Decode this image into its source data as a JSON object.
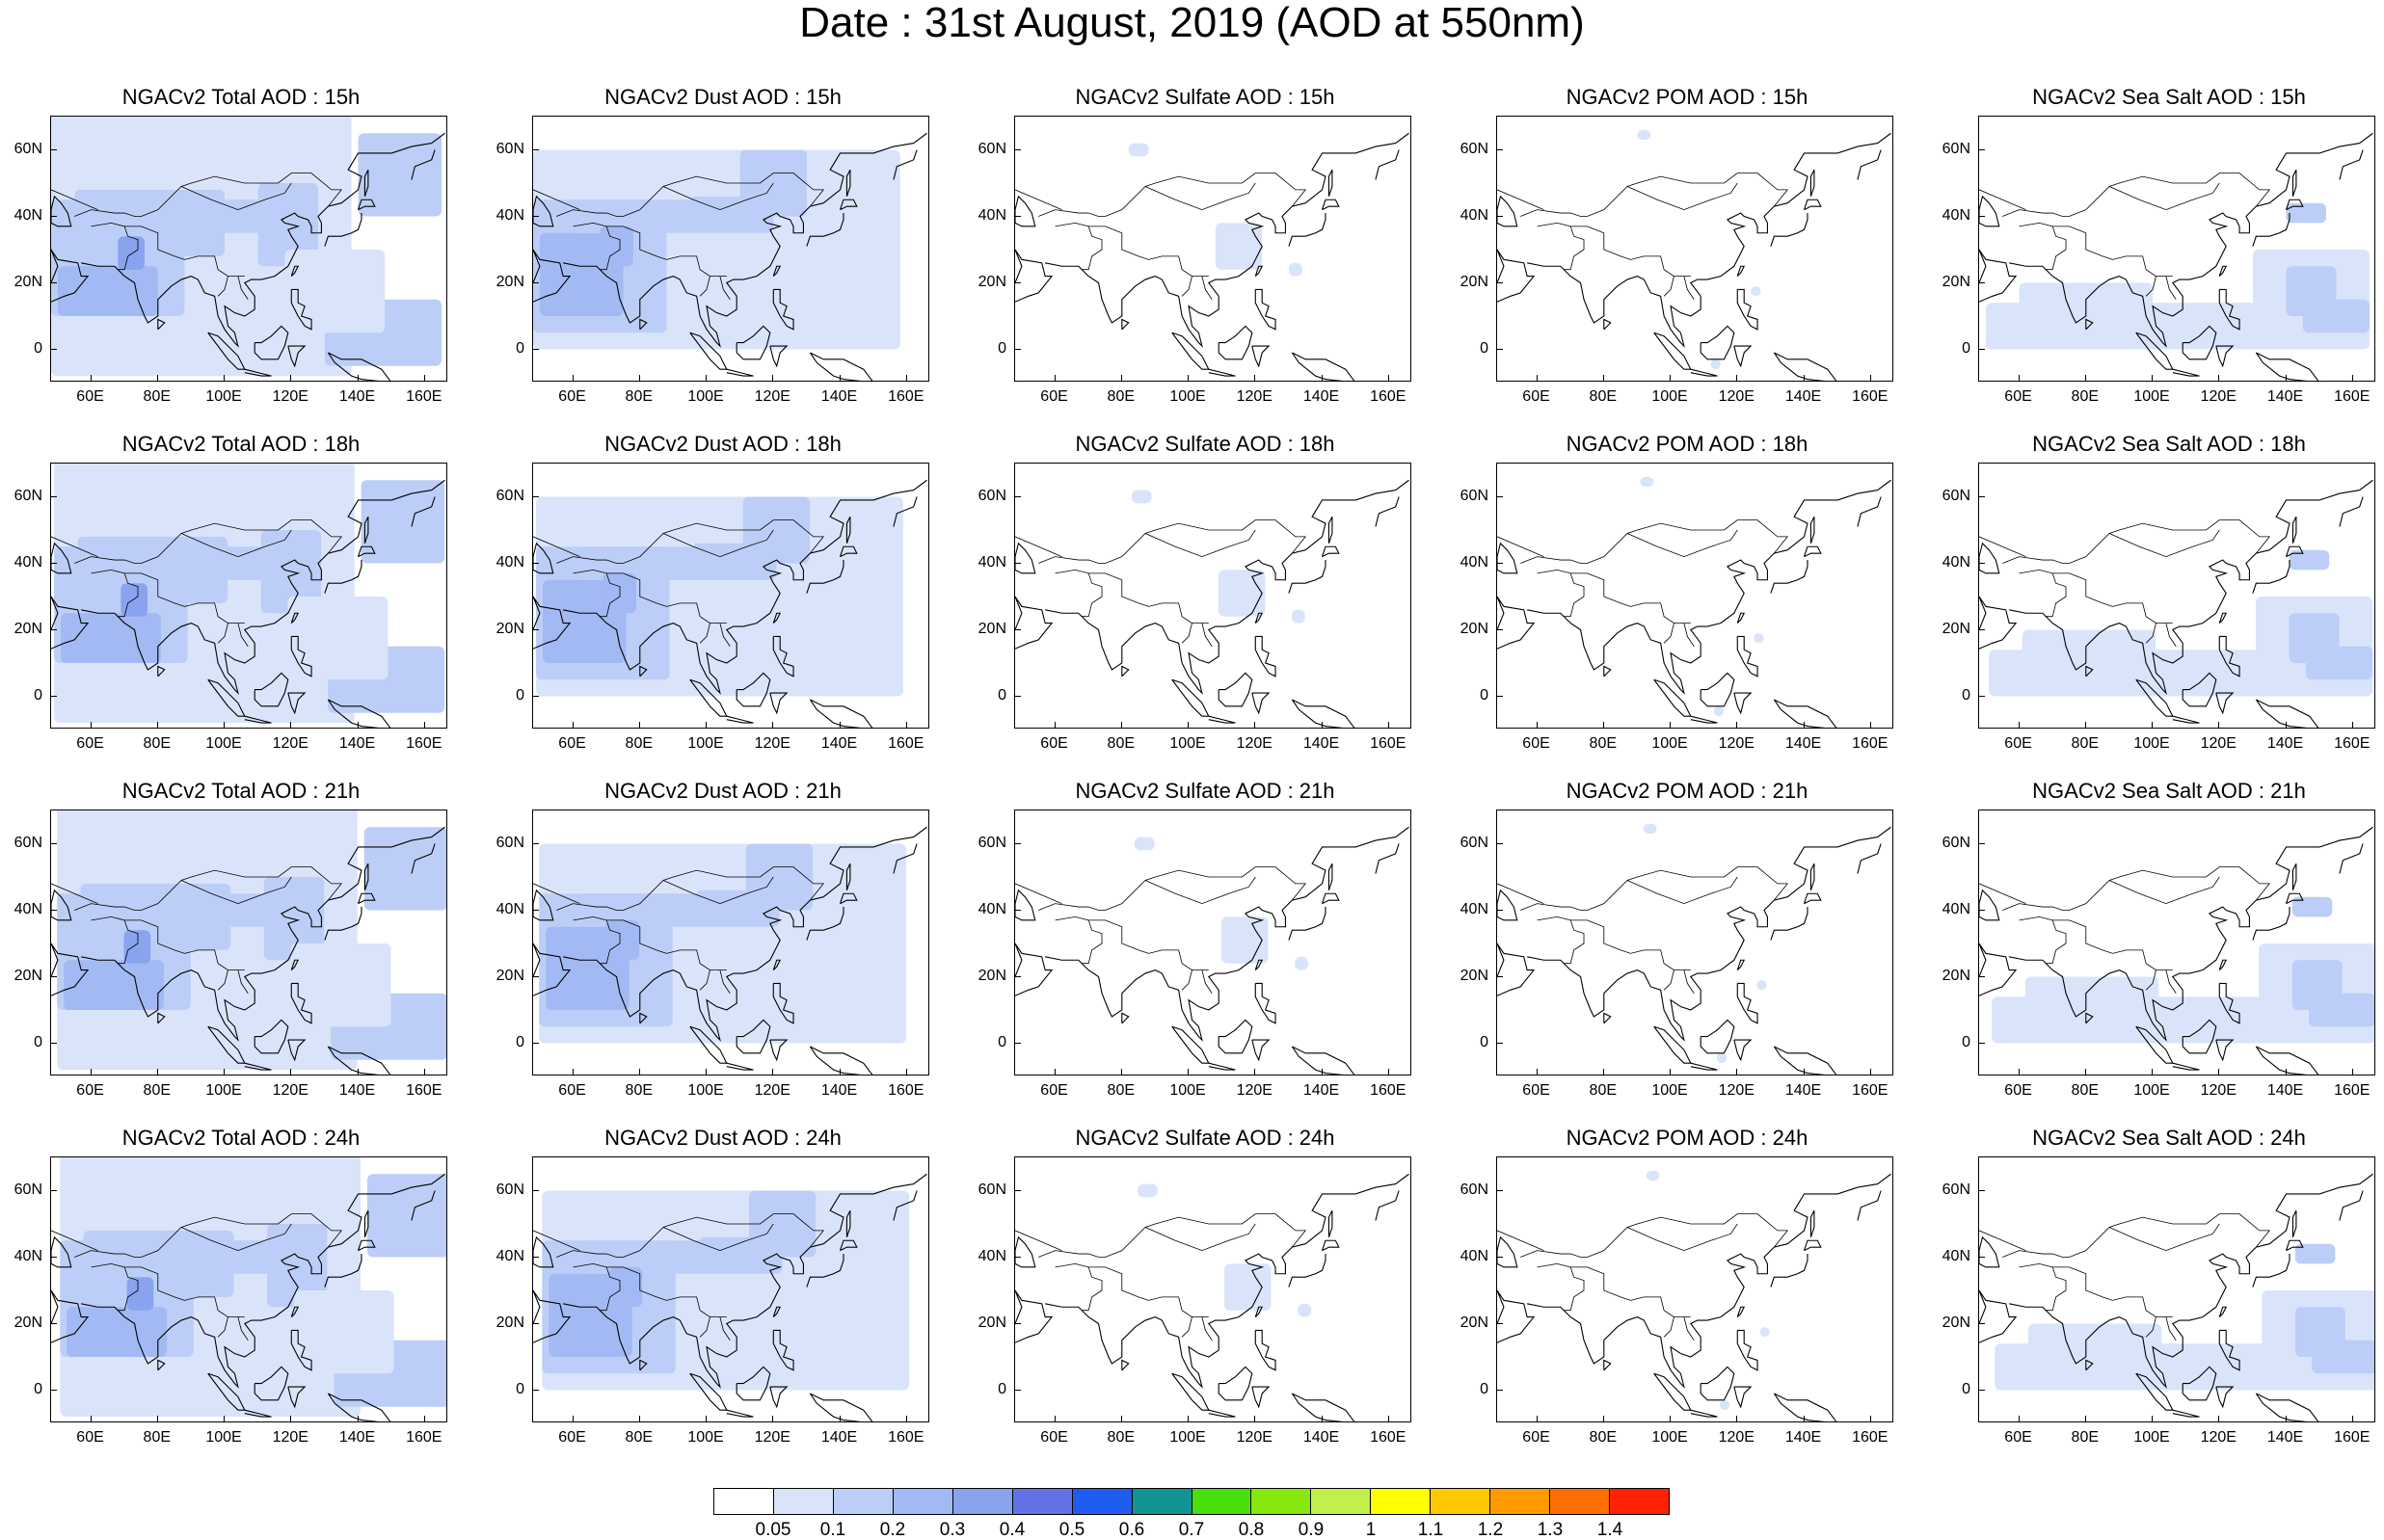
{
  "title": "Date : 31st August, 2019 (AOD at 550nm)",
  "axes": {
    "lat_labels": [
      "60N",
      "40N",
      "20N",
      "0"
    ],
    "lat_values": [
      60,
      40,
      20,
      0
    ],
    "lon_labels": [
      "60E",
      "80E",
      "100E",
      "120E",
      "140E",
      "160E"
    ],
    "lon_values": [
      60,
      80,
      100,
      120,
      140,
      160
    ],
    "lon_range": [
      48,
      167
    ],
    "lat_range": [
      -10,
      70
    ]
  },
  "colorbar": {
    "labels": [
      "0.05",
      "0.1",
      "0.2",
      "0.3",
      "0.4",
      "0.5",
      "0.6",
      "0.7",
      "0.8",
      "0.9",
      "1",
      "1.1",
      "1.2",
      "1.3",
      "1.4"
    ],
    "colors": [
      "#ffffff",
      "#d9e4fb",
      "#bccef7",
      "#a3b9f3",
      "#8aa3ef",
      "#6372e6",
      "#1f5cf0",
      "#119494",
      "#47e00c",
      "#87e80e",
      "#c2f04a",
      "#ffff00",
      "#ffc800",
      "#ff9b00",
      "#ff6e00",
      "#ff2200"
    ]
  },
  "panels": [
    {
      "title": "NGACv2 Total AOD : 15h",
      "type": "total",
      "hour": 15
    },
    {
      "title": "NGACv2 Dust AOD : 15h",
      "type": "dust",
      "hour": 15
    },
    {
      "title": "NGACv2 Sulfate AOD : 15h",
      "type": "sulfate",
      "hour": 15
    },
    {
      "title": "NGACv2 POM AOD : 15h",
      "type": "pom",
      "hour": 15
    },
    {
      "title": "NGACv2 Sea Salt AOD : 15h",
      "type": "seasalt",
      "hour": 15
    },
    {
      "title": "NGACv2 Total AOD : 18h",
      "type": "total",
      "hour": 18
    },
    {
      "title": "NGACv2 Dust AOD : 18h",
      "type": "dust",
      "hour": 18
    },
    {
      "title": "NGACv2 Sulfate AOD : 18h",
      "type": "sulfate",
      "hour": 18
    },
    {
      "title": "NGACv2 POM AOD : 18h",
      "type": "pom",
      "hour": 18
    },
    {
      "title": "NGACv2 Sea Salt AOD : 18h",
      "type": "seasalt",
      "hour": 18
    },
    {
      "title": "NGACv2 Total AOD : 21h",
      "type": "total",
      "hour": 21
    },
    {
      "title": "NGACv2 Dust AOD : 21h",
      "type": "dust",
      "hour": 21
    },
    {
      "title": "NGACv2 Sulfate AOD : 21h",
      "type": "sulfate",
      "hour": 21
    },
    {
      "title": "NGACv2 POM AOD : 21h",
      "type": "pom",
      "hour": 21
    },
    {
      "title": "NGACv2 Sea Salt AOD : 21h",
      "type": "seasalt",
      "hour": 21
    },
    {
      "title": "NGACv2 Total AOD : 24h",
      "type": "total",
      "hour": 24
    },
    {
      "title": "NGACv2 Dust AOD : 24h",
      "type": "dust",
      "hour": 24
    },
    {
      "title": "NGACv2 Sulfate AOD : 24h",
      "type": "sulfate",
      "hour": 24
    },
    {
      "title": "NGACv2 POM AOD : 24h",
      "type": "pom",
      "hour": 24
    },
    {
      "title": "NGACv2 Sea Salt  AOD : 24h",
      "type": "seasalt",
      "hour": 24
    }
  ]
}
